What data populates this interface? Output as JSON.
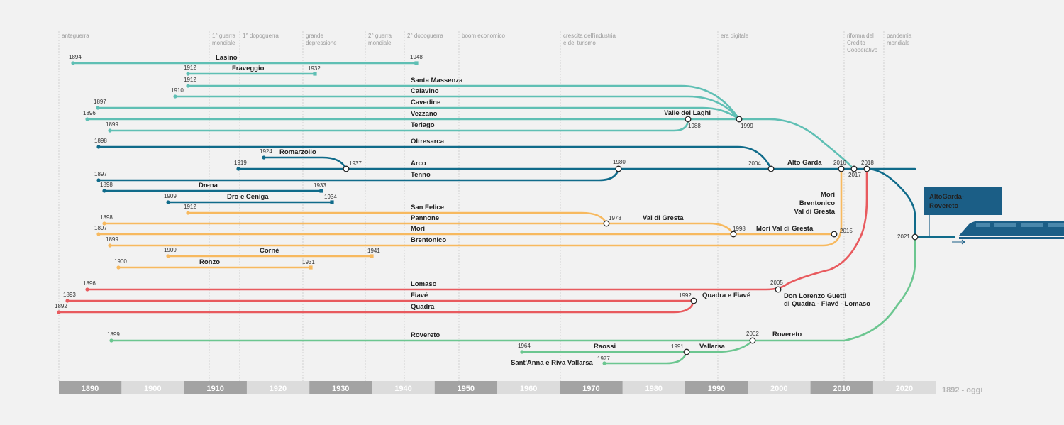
{
  "title": "1892 - oggi",
  "colors": {
    "background": "#f2f2f2",
    "teal": "#5fbfb4",
    "blue": "#106b8a",
    "orange": "#f7b95f",
    "red": "#e85a5e",
    "green": "#6cc690",
    "badge": "#1b5e86"
  },
  "eras": [
    {
      "id": "e1",
      "lines": [
        "anteguerra"
      ]
    },
    {
      "id": "e2",
      "lines": [
        "1° guerra",
        "mondiale"
      ]
    },
    {
      "id": "e3",
      "lines": [
        "1° dopoguerra"
      ]
    },
    {
      "id": "e4",
      "lines": [
        "grande",
        "depressione"
      ]
    },
    {
      "id": "e5",
      "lines": [
        "2° guerra",
        "mondiale"
      ]
    },
    {
      "id": "e6",
      "lines": [
        "2° dopoguerra"
      ]
    },
    {
      "id": "e7",
      "lines": [
        "boom economico"
      ]
    },
    {
      "id": "e8",
      "lines": [
        "crescita dell'industria",
        "e del turismo"
      ]
    },
    {
      "id": "e9",
      "lines": [
        "era digitale"
      ]
    },
    {
      "id": "e10",
      "lines": [
        "riforma del",
        "Credito",
        "Cooperativo"
      ]
    },
    {
      "id": "e11",
      "lines": [
        "pandemia",
        "mondiale"
      ]
    }
  ],
  "decades": [
    "1890",
    "1900",
    "1910",
    "1920",
    "1930",
    "1940",
    "1950",
    "1960",
    "1970",
    "1980",
    "1990",
    "2000",
    "2010",
    "2020"
  ],
  "banks": [
    {
      "name": "Lasino",
      "start": "1894",
      "end": "1948",
      "group": "teal"
    },
    {
      "name": "Fraveggio",
      "start": "1912",
      "end": "1932",
      "group": "teal"
    },
    {
      "name": "Santa Massenza",
      "start": "1912",
      "group": "teal"
    },
    {
      "name": "Calavino",
      "start": "1910",
      "group": "teal"
    },
    {
      "name": "Cavedine",
      "start": "1897",
      "group": "teal"
    },
    {
      "name": "Vezzano",
      "start": "1896",
      "group": "teal"
    },
    {
      "name": "Terlago",
      "start": "1899",
      "group": "teal"
    },
    {
      "name": "Oltresarca",
      "start": "1898",
      "group": "blue"
    },
    {
      "name": "Romarzollo",
      "start": "1924",
      "group": "blue"
    },
    {
      "name": "Arco",
      "start": "1919",
      "group": "blue"
    },
    {
      "name": "Tenno",
      "start": "1897",
      "group": "blue"
    },
    {
      "name": "Drena",
      "start": "1898",
      "end": "1933",
      "group": "blue"
    },
    {
      "name": "Dro e Ceniga",
      "start": "1909",
      "end": "1934",
      "group": "blue"
    },
    {
      "name": "San Felice",
      "start": "1912",
      "group": "orange"
    },
    {
      "name": "Pannone",
      "start": "1898",
      "group": "orange"
    },
    {
      "name": "Mori",
      "start": "1897",
      "group": "orange"
    },
    {
      "name": "Brentonico",
      "start": "1899",
      "group": "orange"
    },
    {
      "name": "Corné",
      "start": "1909",
      "end": "1941",
      "group": "orange"
    },
    {
      "name": "Ronzo",
      "start": "1900",
      "end": "1931",
      "group": "orange"
    },
    {
      "name": "Lomaso",
      "start": "1896",
      "group": "red"
    },
    {
      "name": "Fiavé",
      "start": "1893",
      "group": "red"
    },
    {
      "name": "Quadra",
      "start": "1892",
      "group": "red"
    },
    {
      "name": "Rovereto",
      "start": "1899",
      "group": "green"
    },
    {
      "name": "Raossi",
      "start": "1964",
      "group": "green"
    },
    {
      "name": "Sant'Anna e Riva Vallarsa",
      "start": "1977",
      "group": "green"
    }
  ],
  "mergers": [
    {
      "name": "Valle dei Laghi",
      "year": "1988"
    },
    {
      "name": "",
      "year": "1999"
    },
    {
      "name": "",
      "year": "1937"
    },
    {
      "name": "",
      "year": "1980"
    },
    {
      "name": "Alto Garda",
      "year": "2004"
    },
    {
      "name": "",
      "year": "2016"
    },
    {
      "name": "",
      "year": "2017"
    },
    {
      "name": "",
      "year": "2018"
    },
    {
      "name": "Val di Gresta",
      "year": "1978"
    },
    {
      "name": "Mori Val di Gresta",
      "year": "1998"
    },
    {
      "name": "Mori Brentonico Val di Gresta",
      "lines": [
        "Mori",
        "Brentonico",
        "Val di Gresta"
      ],
      "year": "2015"
    },
    {
      "name": "Quadra e Fiavé",
      "year": "1992"
    },
    {
      "name": "Don Lorenzo Guetti di Quadra - Fiavé - Lomaso",
      "lines": [
        "Don Lorenzo Guetti",
        "di Quadra - Fiavé - Lomaso"
      ],
      "year": "2005"
    },
    {
      "name": "Vallarsa",
      "year": "1991"
    },
    {
      "name": "Rovereto",
      "year": "2002"
    },
    {
      "name": "",
      "year": "2021"
    }
  ],
  "final": {
    "lines": [
      "AltoGarda-",
      "Rovereto"
    ]
  },
  "train_icon": "train-icon",
  "arrow_icon": "arrow-right-icon"
}
